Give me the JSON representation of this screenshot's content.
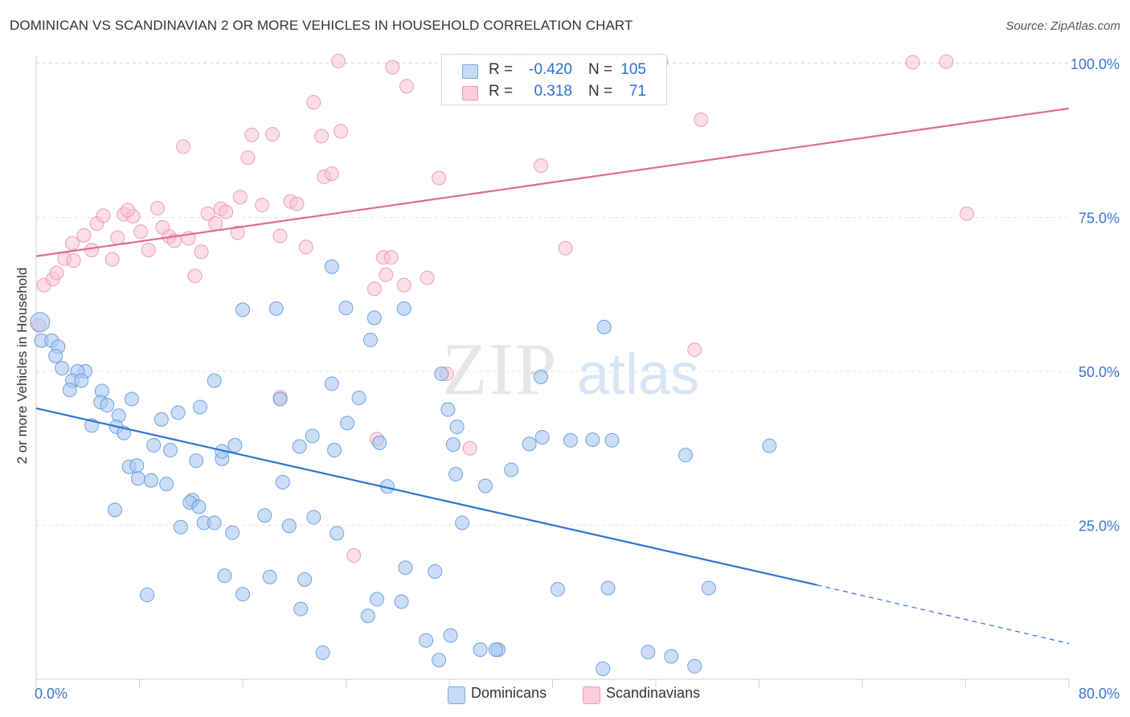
{
  "header": {
    "title": "DOMINICAN VS SCANDINAVIAN 2 OR MORE VEHICLES IN HOUSEHOLD CORRELATION CHART",
    "source": "Source: ZipAtlas.com"
  },
  "stats": {
    "rows": [
      {
        "r_label": "R =",
        "r_value": "-0.420",
        "n_label": "N =",
        "n_value": "105",
        "color": "#a9c8f0"
      },
      {
        "r_label": "R =",
        "r_value": "0.318",
        "n_label": "N =",
        "n_value": "71",
        "color": "#f5b5c8"
      }
    ]
  },
  "legend": {
    "dominicans": "Dominicans",
    "scandinavians": "Scandinavians"
  },
  "watermark": {
    "zip": "ZIP",
    "atlas": "atlas"
  },
  "chart_data": {
    "type": "scatter",
    "title": "DOMINICAN VS SCANDINAVIAN 2 OR MORE VEHICLES IN HOUSEHOLD CORRELATION CHART",
    "ylabel": "2 or more Vehicles in Household",
    "xlabel": "",
    "xlim": [
      0,
      80
    ],
    "ylim": [
      0,
      105
    ],
    "x_tick_labels": [
      "0.0%",
      "80.0%"
    ],
    "y_ticks": [
      25,
      50,
      75,
      100
    ],
    "y_tick_labels": [
      "25.0%",
      "50.0%",
      "75.0%",
      "100.0%"
    ],
    "grid": true,
    "colors": {
      "dominicans_fill": "#a9c8f0",
      "dominicans_stroke": "#5b93d9",
      "dominicans_line": "#2f72d2",
      "scandinavians_fill": "#f7c2d2",
      "scandinavians_stroke": "#e98aa8",
      "scandinavians_line": "#e26a93",
      "axis_text": "#3b76cc"
    },
    "series": [
      {
        "name": "Dominicans",
        "trend": {
          "x0": 0,
          "y0": 44.0,
          "x1": 60.5,
          "y1": 15.3,
          "dash_to_x": 80,
          "dash_to_y": 5.8
        },
        "points": [
          [
            0.3,
            58
          ],
          [
            0.4,
            55
          ],
          [
            1.2,
            55
          ],
          [
            1.7,
            54
          ],
          [
            1.5,
            52.5
          ],
          [
            2,
            50.5
          ],
          [
            3.8,
            50
          ],
          [
            3.2,
            50
          ],
          [
            2.8,
            48.5
          ],
          [
            3.5,
            48.5
          ],
          [
            2.6,
            47
          ],
          [
            5.1,
            46.8
          ],
          [
            5,
            45
          ],
          [
            7.4,
            45.5
          ],
          [
            5.5,
            44.5
          ],
          [
            6.4,
            42.8
          ],
          [
            4.3,
            41.2
          ],
          [
            6.2,
            41
          ],
          [
            6.8,
            40
          ],
          [
            9.7,
            42.2
          ],
          [
            11,
            43.3
          ],
          [
            12.7,
            44.2
          ],
          [
            13.8,
            48.5
          ],
          [
            18.9,
            45.5
          ],
          [
            22.9,
            48
          ],
          [
            25,
            45.7
          ],
          [
            21.4,
            39.5
          ],
          [
            24.1,
            41.6
          ],
          [
            20.4,
            37.8
          ],
          [
            23.1,
            37.2
          ],
          [
            14.4,
            35.8
          ],
          [
            15.4,
            38
          ],
          [
            14.4,
            37
          ],
          [
            12.4,
            35.5
          ],
          [
            10.4,
            37.2
          ],
          [
            9.1,
            38
          ],
          [
            7.2,
            34.5
          ],
          [
            7.8,
            34.7
          ],
          [
            7.9,
            32.6
          ],
          [
            8.9,
            32.3
          ],
          [
            10.1,
            31.7
          ],
          [
            12.1,
            29.1
          ],
          [
            11.9,
            28.7
          ],
          [
            6.1,
            27.5
          ],
          [
            11.2,
            24.7
          ],
          [
            13,
            25.4
          ],
          [
            13.8,
            25.4
          ],
          [
            15.2,
            23.8
          ],
          [
            17.7,
            26.6
          ],
          [
            19.1,
            32
          ],
          [
            19.6,
            24.9
          ],
          [
            21.5,
            26.3
          ],
          [
            23.3,
            23.7
          ],
          [
            14.6,
            16.8
          ],
          [
            18.1,
            16.6
          ],
          [
            20.8,
            16.2
          ],
          [
            16,
            13.8
          ],
          [
            8.6,
            13.7
          ],
          [
            20.5,
            11.4
          ],
          [
            25.7,
            10.3
          ],
          [
            26.4,
            13
          ],
          [
            28.3,
            12.6
          ],
          [
            28.6,
            18.1
          ],
          [
            30.9,
            17.5
          ],
          [
            27.2,
            31.3
          ],
          [
            32.5,
            33.3
          ],
          [
            33,
            25.4
          ],
          [
            34.8,
            31.4
          ],
          [
            36.8,
            34
          ],
          [
            31.9,
            43.8
          ],
          [
            32.6,
            41
          ],
          [
            31.4,
            49.6
          ],
          [
            39.1,
            49.1
          ],
          [
            39.2,
            39.3
          ],
          [
            28.5,
            60.2
          ],
          [
            24,
            60.3
          ],
          [
            26.2,
            58.7
          ],
          [
            22.9,
            67
          ],
          [
            18.6,
            60.2
          ],
          [
            16,
            60
          ],
          [
            25.9,
            55.1
          ],
          [
            32.3,
            38.1
          ],
          [
            38.2,
            38.2
          ],
          [
            41.4,
            38.8
          ],
          [
            43.1,
            38.9
          ],
          [
            44.6,
            38.8
          ],
          [
            50.3,
            36.4
          ],
          [
            56.8,
            37.9
          ],
          [
            44,
            57.2
          ],
          [
            26.6,
            38.4
          ],
          [
            40.4,
            14.6
          ],
          [
            44.3,
            14.8
          ],
          [
            52.1,
            14.8
          ],
          [
            34.4,
            4.8
          ],
          [
            35.8,
            4.8
          ],
          [
            35.6,
            4.8
          ],
          [
            32.1,
            7.1
          ],
          [
            30.2,
            6.3
          ],
          [
            31.2,
            3.1
          ],
          [
            22.2,
            4.3
          ],
          [
            43.9,
            1.7
          ],
          [
            47.4,
            4.4
          ],
          [
            49.2,
            3.7
          ],
          [
            51,
            2.1
          ],
          [
            12.6,
            28
          ]
        ]
      },
      {
        "name": "Scandinavians",
        "trend": {
          "x0": 0,
          "y0": 68.7,
          "x1": 80,
          "y1": 92.7
        },
        "points": [
          [
            0.2,
            57.5
          ],
          [
            0.6,
            64
          ],
          [
            1.3,
            65
          ],
          [
            1.6,
            66
          ],
          [
            2.2,
            68.3
          ],
          [
            2.9,
            68
          ],
          [
            2.8,
            70.8
          ],
          [
            4.3,
            69.7
          ],
          [
            3.7,
            72.1
          ],
          [
            4.7,
            74
          ],
          [
            5.2,
            75.3
          ],
          [
            5.9,
            68.2
          ],
          [
            6.3,
            71.7
          ],
          [
            6.8,
            75.5
          ],
          [
            7.5,
            75.2
          ],
          [
            7.1,
            76.2
          ],
          [
            8.1,
            72.7
          ],
          [
            8.7,
            69.7
          ],
          [
            9.4,
            76.5
          ],
          [
            9.8,
            73.4
          ],
          [
            10.3,
            71.9
          ],
          [
            10.7,
            71.2
          ],
          [
            11.8,
            71.6
          ],
          [
            12.3,
            65.5
          ],
          [
            12.8,
            69.4
          ],
          [
            13.3,
            75.6
          ],
          [
            13.9,
            74
          ],
          [
            14.3,
            76.4
          ],
          [
            14.7,
            75.9
          ],
          [
            15.6,
            72.5
          ],
          [
            15.8,
            78.3
          ],
          [
            17.5,
            77
          ],
          [
            18.9,
            72
          ],
          [
            19.7,
            77.6
          ],
          [
            20.2,
            77.2
          ],
          [
            20.9,
            70.2
          ],
          [
            11.4,
            86.5
          ],
          [
            16.4,
            84.7
          ],
          [
            16.7,
            88.4
          ],
          [
            18.3,
            88.5
          ],
          [
            22.3,
            81.6
          ],
          [
            22.9,
            82.1
          ],
          [
            21.5,
            93.7
          ],
          [
            22.1,
            88.2
          ],
          [
            23.6,
            89
          ],
          [
            23.4,
            100.4
          ],
          [
            26.2,
            63.4
          ],
          [
            26.9,
            68.5
          ],
          [
            27.5,
            68.5
          ],
          [
            28.5,
            64
          ],
          [
            28.7,
            96.3
          ],
          [
            27.6,
            99.4
          ],
          [
            30.3,
            65.2
          ],
          [
            31.2,
            81.4
          ],
          [
            31.8,
            49.6
          ],
          [
            26.4,
            39
          ],
          [
            33.2,
            100.4
          ],
          [
            33.6,
            37.5
          ],
          [
            37.2,
            100.1
          ],
          [
            37.5,
            100.2
          ],
          [
            39.1,
            83.4
          ],
          [
            41,
            70
          ],
          [
            48.4,
            100.3
          ],
          [
            51.5,
            90.9
          ],
          [
            51,
            53.5
          ],
          [
            67.9,
            100.2
          ],
          [
            70.5,
            100.3
          ],
          [
            72.1,
            75.6
          ],
          [
            24.6,
            20.1
          ],
          [
            18.9,
            45.8
          ],
          [
            27.1,
            65.7
          ]
        ]
      }
    ]
  }
}
